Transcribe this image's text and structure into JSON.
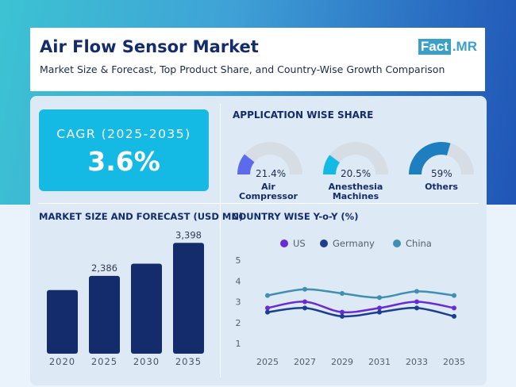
{
  "header": {
    "title": "Air Flow Sensor Market",
    "subtitle": "Market Size & Forecast, Top Product Share, and Country-Wise Growth Comparison",
    "logo_part1": "Fact",
    "logo_part2": ".MR"
  },
  "cagr": {
    "label": "CAGR (2025-2035)",
    "value": "3.6%"
  },
  "application_share": {
    "title": "APPLICATION WISE SHARE",
    "items": [
      {
        "label": "Air Compressor",
        "value": "21.4%",
        "share": 21.4
      },
      {
        "label": "Anesthesia Machines",
        "value": "20.5%",
        "share": 20.5
      },
      {
        "label": "Others",
        "value": "59%",
        "share": 59
      }
    ]
  },
  "market_size": {
    "title": "MARKET SIZE AND FORECAST (USD MN)"
  },
  "country_growth": {
    "title": "COUNTRY WISE Y-o-Y (%)"
  },
  "colors": {
    "navy": "#142c6b",
    "cyan": "#14b9e4",
    "us": "#6a2ad4",
    "germany": "#1d3e8f",
    "china": "#3f8fb3",
    "gauge_track": "#d7dde5",
    "gauge_ac": "#5b6bec",
    "gauge_am": "#14b9e4",
    "gauge_others": "#1e7fc0"
  },
  "chart_data": [
    {
      "type": "bar",
      "title": "MARKET SIZE AND FORECAST (USD MN)",
      "categories": [
        "2020",
        "2025",
        "2030",
        "2035"
      ],
      "values": [
        1950,
        2386,
        2760,
        3398
      ],
      "data_labels": [
        "",
        "2,386",
        "",
        "3,398"
      ],
      "ylim": [
        0,
        3550
      ]
    },
    {
      "type": "line",
      "title": "COUNTRY WISE Y-o-Y (%)",
      "x": [
        "2025",
        "2027",
        "2029",
        "2031",
        "2033",
        "2035"
      ],
      "series": [
        {
          "name": "US",
          "values": [
            2.7,
            3.0,
            2.5,
            2.7,
            3.0,
            2.7
          ]
        },
        {
          "name": "Germany",
          "values": [
            2.5,
            2.7,
            2.3,
            2.5,
            2.7,
            2.3
          ]
        },
        {
          "name": "China",
          "values": [
            3.3,
            3.6,
            3.4,
            3.2,
            3.5,
            3.3
          ]
        }
      ],
      "yticks": [
        "1",
        "2",
        "3",
        "4",
        "5"
      ],
      "ylim": [
        1,
        5
      ],
      "legend": "top",
      "grid": false
    }
  ]
}
